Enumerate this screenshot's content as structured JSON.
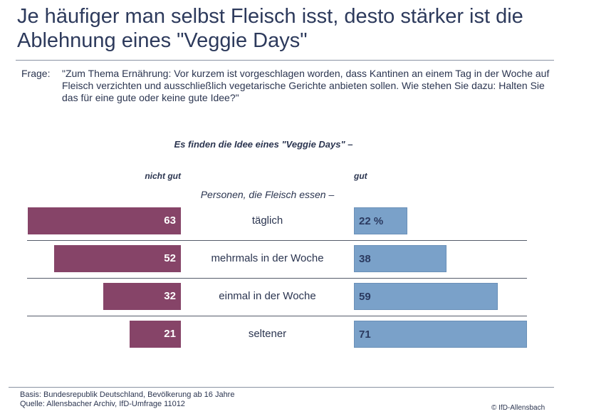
{
  "chart_data": {
    "type": "bar",
    "title": "Je häufiger man selbst Fleisch isst, desto stärker ist die Ablehnung eines \"Veggie Days\"",
    "question_label": "Frage:",
    "question": "\"Zum Thema Ernährung: Vor kurzem ist vorgeschlagen worden, dass Kantinen an einem Tag in der Woche auf Fleisch verzichten und ausschließlich vegetarische Gerichte anbieten sollen. Wie stehen Sie dazu: Halten Sie das für eine gute oder keine gute Idee?\"",
    "subtitle": "Es finden die Idee eines \"Veggie Days\" –",
    "group_label": "Personen, die Fleisch essen –",
    "categories": [
      "täglich",
      "mehrmals in der Woche",
      "einmal in der Woche",
      "seltener"
    ],
    "series": [
      {
        "name": "nicht gut",
        "values": [
          63,
          52,
          32,
          21
        ],
        "color": "#864468",
        "direction": "left"
      },
      {
        "name": "gut",
        "values": [
          22,
          38,
          59,
          71
        ],
        "color": "#7aa1c9",
        "direction": "right"
      }
    ],
    "unit": "%",
    "xlim": [
      0,
      100
    ]
  },
  "footer": {
    "basis": "Basis: Bundesrepublik Deutschland, Bevölkerung ab 16 Jahre",
    "source": "Quelle: Allensbacher Archiv, IfD-Umfrage 11012",
    "copyright": "© IfD-Allensbach"
  }
}
